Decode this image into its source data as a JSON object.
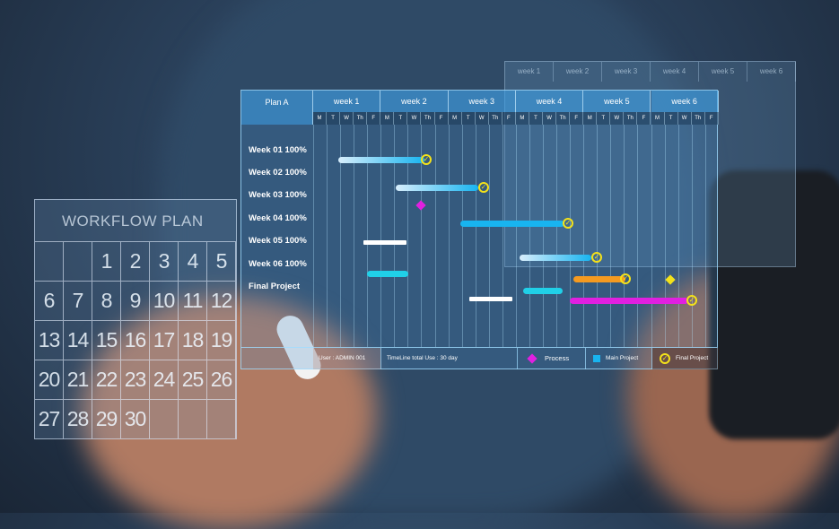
{
  "calendar": {
    "title": "WORKFLOW PLAN",
    "days": [
      "",
      "",
      "1",
      "2",
      "3",
      "4",
      "5",
      "6",
      "7",
      "8",
      "9",
      "10",
      "11",
      "12",
      "13",
      "14",
      "15",
      "16",
      "17",
      "18",
      "19",
      "20",
      "21",
      "22",
      "23",
      "24",
      "25",
      "26",
      "27",
      "28",
      "29",
      "30",
      "",
      "",
      ""
    ]
  },
  "gantt": {
    "plan": "Plan A",
    "weeks": [
      "week 1",
      "week 2",
      "week 3",
      "week 4",
      "week 5",
      "week 6"
    ],
    "days": [
      "M",
      "T",
      "W",
      "Th",
      "F"
    ],
    "rows": [
      "Week 01 100%",
      "Week 02 100%",
      "Week 03 100%",
      "Week 04 100%",
      "Week 05 100%",
      "Week 06 100%",
      "Final Project"
    ],
    "footer": {
      "user": "User : ADMIN 001",
      "timeline": "TimeLine total Use :  30 day",
      "process": "Process",
      "main_project": "Main Project",
      "final_project": "Final Project"
    }
  },
  "back_panel": {
    "weeks": [
      "week 1",
      "week 2",
      "week 3",
      "week 4",
      "week 5",
      "week 6"
    ]
  },
  "colors": {
    "process": "#e020e0",
    "main_project": "#18b4f0",
    "final_project": "#f4e21a"
  }
}
